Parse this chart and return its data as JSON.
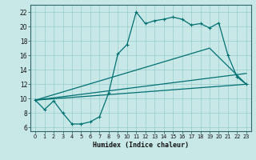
{
  "xlabel": "Humidex (Indice chaleur)",
  "bg_color": "#c8e8e8",
  "grid_color": "#99cccc",
  "line_color": "#007070",
  "xlim": [
    -0.5,
    23.5
  ],
  "ylim": [
    5.5,
    23.0
  ],
  "xticks": [
    0,
    1,
    2,
    3,
    4,
    5,
    6,
    7,
    8,
    9,
    10,
    11,
    12,
    13,
    14,
    15,
    16,
    17,
    18,
    19,
    20,
    21,
    22,
    23
  ],
  "yticks": [
    6,
    8,
    10,
    12,
    14,
    16,
    18,
    20,
    22
  ],
  "curve1_x": [
    0,
    1,
    2,
    3,
    4,
    5,
    6,
    7,
    8,
    9,
    10,
    11,
    12,
    13,
    14,
    15,
    16,
    17,
    18,
    19,
    20,
    21,
    22,
    23
  ],
  "curve1_y": [
    9.8,
    8.5,
    9.7,
    8.0,
    6.5,
    6.5,
    6.8,
    7.5,
    10.8,
    16.2,
    17.5,
    22.0,
    20.4,
    20.8,
    21.0,
    21.3,
    21.0,
    20.2,
    20.4,
    19.8,
    20.5,
    16.0,
    13.0,
    12.0
  ],
  "line1_x": [
    0,
    23
  ],
  "line1_y": [
    9.8,
    12.0
  ],
  "line2_x": [
    0,
    23
  ],
  "line2_y": [
    9.8,
    13.5
  ],
  "line3_x": [
    0,
    19,
    23
  ],
  "line3_y": [
    9.8,
    17.0,
    12.0
  ]
}
